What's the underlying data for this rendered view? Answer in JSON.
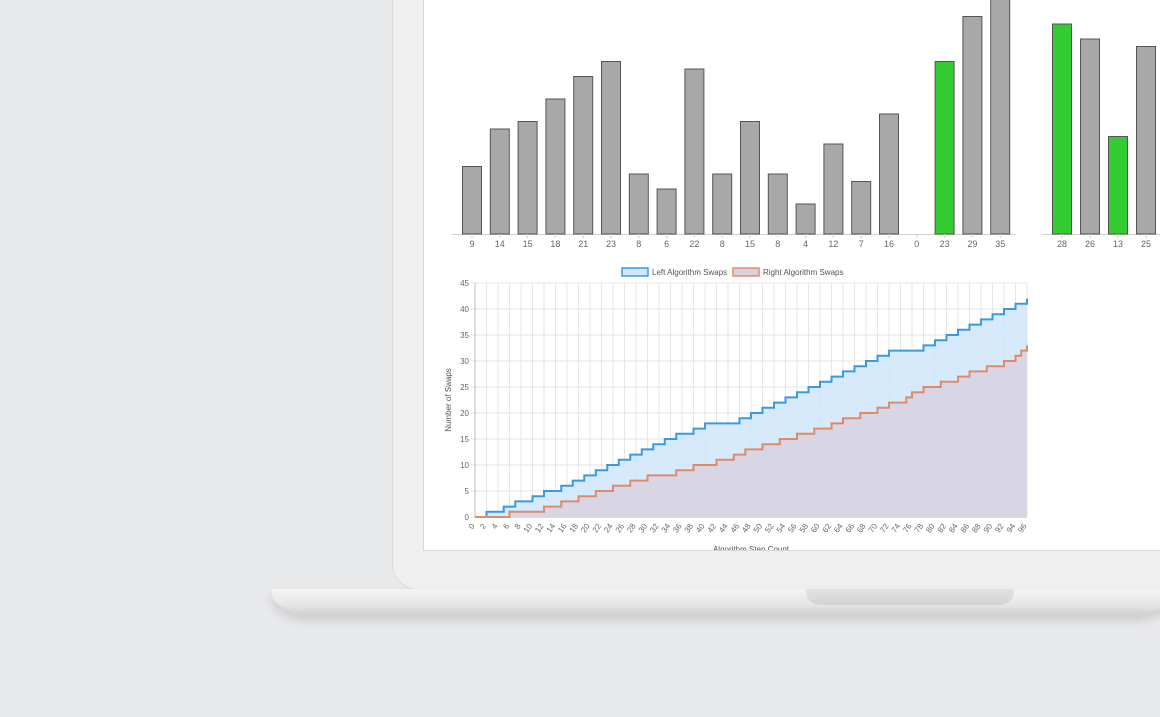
{
  "chart_data": [
    {
      "type": "bar",
      "categories": [
        "9",
        "14",
        "15",
        "18",
        "21",
        "23",
        "8",
        "6",
        "22",
        "8",
        "15",
        "8",
        "4",
        "12",
        "7",
        "16",
        "0",
        "23",
        "29",
        "35"
      ],
      "values": [
        9,
        14,
        15,
        18,
        21,
        23,
        8,
        6,
        22,
        8,
        15,
        8,
        4,
        12,
        7,
        16,
        0,
        23,
        29,
        35
      ],
      "highlight_indices": [
        17
      ],
      "colors": {
        "default": "#a8a8a8",
        "highlight": "#33cc33",
        "stroke": "#555555"
      },
      "ylim": [
        0,
        35
      ]
    },
    {
      "type": "bar",
      "categories": [
        "28",
        "26",
        "13",
        "25"
      ],
      "values": [
        28,
        26,
        13,
        25
      ],
      "highlight_indices": [
        0,
        2
      ],
      "colors": {
        "default": "#a8a8a8",
        "highlight": "#33cc33",
        "stroke": "#555555"
      },
      "ylim": [
        0,
        35
      ]
    },
    {
      "type": "area",
      "stepped": true,
      "xlabel": "Algorithm Step Count",
      "ylabel": "Number of Swaps",
      "xlim": [
        0,
        96
      ],
      "ylim": [
        0,
        45
      ],
      "yticks": [
        0,
        5,
        10,
        15,
        20,
        25,
        30,
        35,
        40,
        45
      ],
      "xtick_step": 2,
      "grid": true,
      "legend_position": "top",
      "series": [
        {
          "name": "Left Algorithm Swaps",
          "color": "#3a9ae0",
          "fill": "#cfe6fb",
          "steps": [
            [
              0,
              0
            ],
            [
              2,
              1
            ],
            [
              5,
              2
            ],
            [
              7,
              3
            ],
            [
              10,
              4
            ],
            [
              12,
              5
            ],
            [
              15,
              6
            ],
            [
              17,
              7
            ],
            [
              19,
              8
            ],
            [
              21,
              9
            ],
            [
              23,
              10
            ],
            [
              25,
              11
            ],
            [
              27,
              12
            ],
            [
              29,
              13
            ],
            [
              31,
              14
            ],
            [
              33,
              15
            ],
            [
              35,
              16
            ],
            [
              38,
              17
            ],
            [
              40,
              18
            ],
            [
              46,
              19
            ],
            [
              48,
              20
            ],
            [
              50,
              21
            ],
            [
              52,
              22
            ],
            [
              54,
              23
            ],
            [
              56,
              24
            ],
            [
              58,
              25
            ],
            [
              60,
              26
            ],
            [
              62,
              27
            ],
            [
              64,
              28
            ],
            [
              66,
              29
            ],
            [
              68,
              30
            ],
            [
              70,
              31
            ],
            [
              72,
              32
            ],
            [
              78,
              33
            ],
            [
              80,
              34
            ],
            [
              82,
              35
            ],
            [
              84,
              36
            ],
            [
              86,
              37
            ],
            [
              88,
              38
            ],
            [
              90,
              39
            ],
            [
              92,
              40
            ],
            [
              94,
              41
            ],
            [
              96,
              42
            ]
          ]
        },
        {
          "name": "Right Algorithm Swaps",
          "color": "#e08a6a",
          "fill": "#d8d1df",
          "steps": [
            [
              0,
              0
            ],
            [
              6,
              1
            ],
            [
              12,
              2
            ],
            [
              15,
              3
            ],
            [
              18,
              4
            ],
            [
              21,
              5
            ],
            [
              24,
              6
            ],
            [
              27,
              7
            ],
            [
              30,
              8
            ],
            [
              35,
              9
            ],
            [
              38,
              10
            ],
            [
              42,
              11
            ],
            [
              45,
              12
            ],
            [
              47,
              13
            ],
            [
              50,
              14
            ],
            [
              53,
              15
            ],
            [
              56,
              16
            ],
            [
              59,
              17
            ],
            [
              62,
              18
            ],
            [
              64,
              19
            ],
            [
              67,
              20
            ],
            [
              70,
              21
            ],
            [
              72,
              22
            ],
            [
              75,
              23
            ],
            [
              76,
              24
            ],
            [
              78,
              25
            ],
            [
              81,
              26
            ],
            [
              84,
              27
            ],
            [
              86,
              28
            ],
            [
              89,
              29
            ],
            [
              92,
              30
            ],
            [
              94,
              31
            ],
            [
              95,
              32
            ],
            [
              96,
              33
            ]
          ]
        }
      ]
    }
  ]
}
